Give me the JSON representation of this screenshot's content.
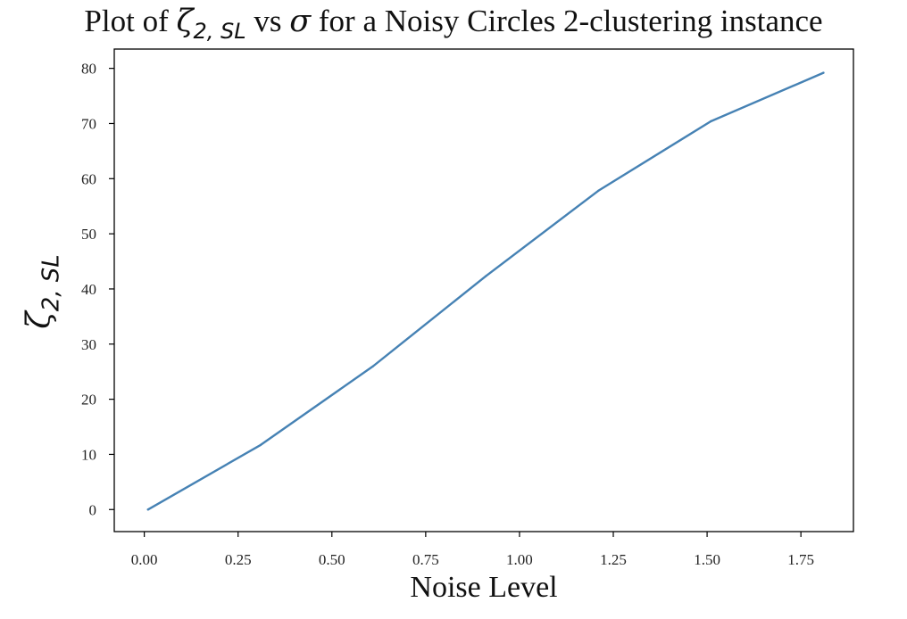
{
  "chart_data": {
    "type": "line",
    "title": {
      "prefix": "Plot of ",
      "symbol": "ζ",
      "symbol_sub": "2, SL",
      "middle": " vs ",
      "sigma": "σ",
      "suffix": " for a Noisy Circles 2-clustering instance"
    },
    "xlabel": "Noise Level",
    "ylabel": {
      "symbol": "ζ",
      "sub": "2, SL"
    },
    "xlim": [
      -0.08,
      1.89
    ],
    "ylim": [
      -4.0,
      83.5
    ],
    "x_ticks": [
      0.0,
      0.25,
      0.5,
      0.75,
      1.0,
      1.25,
      1.5,
      1.75
    ],
    "x_tick_labels": [
      "0.00",
      "0.25",
      "0.50",
      "0.75",
      "1.00",
      "1.25",
      "1.50",
      "1.75"
    ],
    "y_ticks": [
      0,
      10,
      20,
      30,
      40,
      50,
      60,
      70,
      80
    ],
    "y_tick_labels": [
      "0",
      "10",
      "20",
      "30",
      "40",
      "50",
      "60",
      "70",
      "80"
    ],
    "series": [
      {
        "x": [
          0.01,
          0.31,
          0.61,
          0.91,
          1.21,
          1.51,
          1.81
        ],
        "y": [
          0.0,
          11.7,
          26.0,
          42.3,
          57.8,
          70.4,
          79.2
        ]
      }
    ],
    "line_color": "#4682b4",
    "grid": false,
    "legend": "none"
  }
}
